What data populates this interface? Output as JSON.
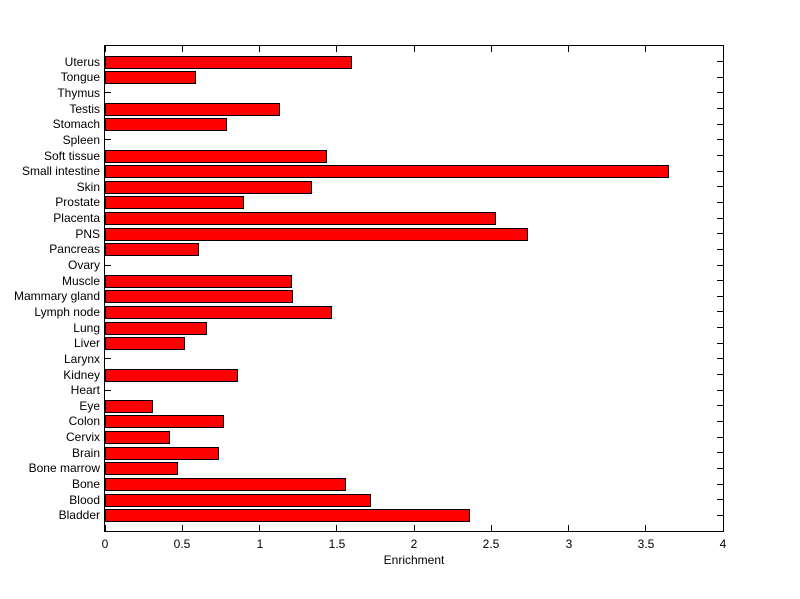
{
  "chart_data": {
    "type": "bar",
    "orientation": "horizontal",
    "title": "",
    "xlabel": "Enrichment",
    "ylabel": "",
    "xlim": [
      0,
      4
    ],
    "xticks": [
      0,
      0.5,
      1,
      1.5,
      2,
      2.5,
      3,
      3.5,
      4
    ],
    "xtick_labels": [
      "0",
      "0.5",
      "1",
      "1.5",
      "2",
      "2.5",
      "3",
      "3.5",
      "4"
    ],
    "grid": false,
    "legend": null,
    "bar_color": "#ff0000",
    "bar_edge_color": "#000000",
    "axis_color": "#000000",
    "background_color": "#ffffff",
    "categories": [
      "Uterus",
      "Tongue",
      "Thymus",
      "Testis",
      "Stomach",
      "Spleen",
      "Soft tissue",
      "Small intestine",
      "Skin",
      "Prostate",
      "Placenta",
      "PNS",
      "Pancreas",
      "Ovary",
      "Muscle",
      "Mammary gland",
      "Lymph node",
      "Lung",
      "Liver",
      "Larynx",
      "Kidney",
      "Heart",
      "Eye",
      "Colon",
      "Cervix",
      "Brain",
      "Bone marrow",
      "Bone",
      "Blood",
      "Bladder"
    ],
    "values": [
      1.6,
      0.59,
      0,
      1.13,
      0.79,
      0,
      1.44,
      3.65,
      1.34,
      0.9,
      2.53,
      2.74,
      0.61,
      0,
      1.21,
      1.22,
      1.47,
      0.66,
      0.52,
      0,
      0.86,
      0,
      0.31,
      0.77,
      0.42,
      0.74,
      0.47,
      1.56,
      1.72,
      2.36
    ]
  }
}
